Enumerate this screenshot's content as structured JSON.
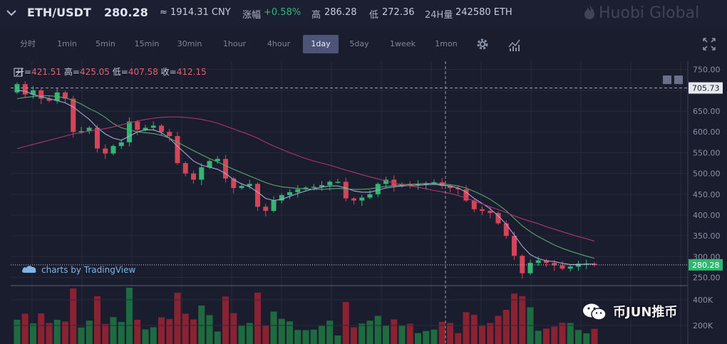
{
  "header": {
    "pair": "ETH/USDT",
    "price": "280.28",
    "cny": "≈ 1914.31 CNY",
    "change_label": "涨幅",
    "change_value": "+0.58%",
    "high_label": "高",
    "high_value": "286.28",
    "low_label": "低",
    "low_value": "272.36",
    "volume_label": "24H量",
    "volume_value": "242580 ETH",
    "logo_text": "Huobi Global"
  },
  "toolbar": {
    "intervals": [
      "分时",
      "1min",
      "5min",
      "15min",
      "30min",
      "1hour",
      "4hour",
      "1day",
      "5day",
      "1week",
      "1mon"
    ],
    "active": "1day",
    "icons": [
      "gear-icon",
      "indicator-icon",
      "fullscreen-icon"
    ]
  },
  "ohlc": {
    "open_label": "开=",
    "open_value": "421.51",
    "high_label": "高=",
    "high_value": "425.05",
    "low_label": "低=",
    "low_value": "407.58",
    "close_label": "收=",
    "close_value": "412.15"
  },
  "branding": {
    "tradingview": "charts by TradingView",
    "watermark": "币JUN推币"
  },
  "colors": {
    "background": "#1a1d2e",
    "up": "#2eb872",
    "down": "#d6445a",
    "ma_fast": "#a9a7d6",
    "ma_mid": "#56a86e",
    "ma_slow": "#b0356b",
    "grid": "#262a3d"
  },
  "chart_data": {
    "type": "candlestick",
    "interval": "1day",
    "price_axis": {
      "range": [
        232,
        770
      ],
      "ticks": [
        750,
        700,
        650,
        600,
        550,
        500,
        450,
        400,
        350,
        300,
        250
      ],
      "tick_labels": [
        "750.00",
        "700.00",
        "650.00",
        "600.00",
        "550.00",
        "500.00",
        "450.00",
        "400.00",
        "350.00",
        "300.00",
        "250.00"
      ],
      "crosshair_label": "705.73",
      "last_price_label": "280.28"
    },
    "volume_axis": {
      "ticks": [
        400000,
        200000
      ],
      "tick_labels": [
        "400K",
        "200K"
      ]
    },
    "closes": [
      715,
      690,
      700,
      680,
      675,
      695,
      680,
      600,
      602,
      610,
      560,
      548,
      566,
      575,
      625,
      605,
      610,
      615,
      600,
      590,
      525,
      500,
      485,
      515,
      530,
      535,
      488,
      465,
      470,
      475,
      420,
      410,
      435,
      448,
      455,
      462,
      466,
      468,
      472,
      480,
      480,
      440,
      435,
      442,
      450,
      475,
      485,
      470,
      475,
      471,
      474,
      477,
      479,
      470,
      465,
      462,
      435,
      414,
      410,
      405,
      380,
      350,
      302,
      260,
      285,
      291,
      285,
      279,
      271,
      276,
      283,
      283,
      280
    ],
    "moving_averages": [
      {
        "values": [
          700,
          698,
          690,
          685,
          680,
          675,
          670,
          660,
          645,
          630,
          610,
          595,
          585,
          580,
          590,
          600,
          605,
          605,
          598,
          585,
          565,
          548,
          530,
          520,
          515,
          510,
          500,
          485,
          475,
          468,
          455,
          440,
          435,
          438,
          445,
          452,
          458,
          463,
          467,
          470,
          470,
          465,
          458,
          455,
          455,
          460,
          465,
          468,
          470,
          471,
          472,
          473,
          474,
          472,
          470,
          465,
          455,
          440,
          428,
          415,
          398,
          378,
          352,
          325,
          305,
          295,
          290,
          288,
          284,
          281,
          281,
          282,
          282
        ]
      },
      {
        "values": [
          680,
          683,
          685,
          687,
          687,
          685,
          682,
          676,
          667,
          656,
          647,
          635,
          620,
          610,
          605,
          600,
          598,
          596,
          592,
          585,
          575,
          565,
          555,
          545,
          536,
          528,
          519,
          510,
          502,
          494,
          486,
          478,
          472,
          468,
          466,
          464,
          463,
          462,
          462,
          463,
          464,
          463,
          462,
          462,
          463,
          466,
          469,
          471,
          473,
          474,
          475,
          476,
          476,
          475,
          473,
          470,
          465,
          457,
          448,
          438,
          425,
          410,
          392,
          374,
          360,
          348,
          338,
          328,
          320,
          313,
          307,
          301,
          296
        ]
      },
      {
        "values": [
          560,
          565,
          570,
          575,
          580,
          585,
          590,
          595,
          598,
          602,
          605,
          608,
          612,
          617,
          622,
          626,
          630,
          633,
          635,
          636,
          636,
          635,
          633,
          630,
          626,
          621,
          614,
          607,
          600,
          593,
          585,
          575,
          566,
          558,
          550,
          543,
          536,
          530,
          525,
          520,
          514,
          508,
          503,
          497,
          492,
          487,
          482,
          477,
          474,
          470,
          467,
          463,
          459,
          456,
          452,
          447,
          441,
          434,
          427,
          420,
          413,
          406,
          398,
          391,
          385,
          379,
          372,
          366,
          360,
          354,
          348,
          343,
          337
        ]
      }
    ]
  }
}
